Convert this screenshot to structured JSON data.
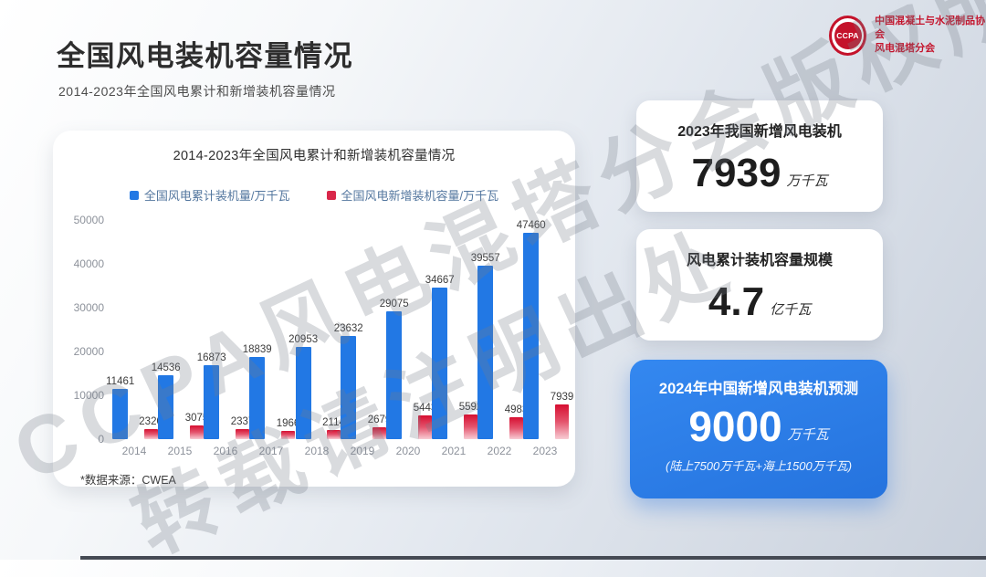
{
  "page": {
    "title": "全国风电装机容量情况",
    "subtitle": "2014-2023年全国风电累计和新增装机容量情况"
  },
  "logo": {
    "acronym": "CCPA",
    "org_line1": "中国混凝土与水泥制品协会",
    "org_line2": "风电混塔分会"
  },
  "chart_card": {
    "footnote": "*数据来源：CWEA"
  },
  "chart_data": {
    "type": "bar",
    "title": "2014-2023年全国风电累计和新增装机容量情况",
    "categories": [
      "2014",
      "2015",
      "2016",
      "2017",
      "2018",
      "2019",
      "2020",
      "2021",
      "2022",
      "2023"
    ],
    "series": [
      {
        "name": "全国风电累计装机量/万千瓦",
        "color": "#2278e4",
        "values": [
          11461,
          14536,
          16873,
          18839,
          20953,
          23632,
          29075,
          34667,
          39557,
          47460
        ]
      },
      {
        "name": "全国风电新增装机容量/万千瓦",
        "color": "#d9274a",
        "values": [
          2320,
          3075,
          2337,
          1966,
          2114,
          2679,
          5443,
          5592,
          4983,
          7939
        ]
      }
    ],
    "xlabel": "",
    "ylabel": "",
    "ylim": [
      0,
      50000
    ],
    "yticks": [
      0,
      10000,
      20000,
      30000,
      40000,
      50000
    ],
    "grid": false,
    "legend_position": "top",
    "data_labels": true
  },
  "stat_cards": [
    {
      "title": "2023年我国新增风电装机",
      "value": "7939",
      "unit": "万千瓦"
    },
    {
      "title": "风电累计装机容量规模",
      "value": "4.7",
      "unit": "亿千瓦"
    },
    {
      "title": "2024年中国新增风电装机预测",
      "value": "9000",
      "unit": "万千瓦",
      "note": "(陆上7500万千瓦+海上1500万千瓦)"
    }
  ],
  "watermark": {
    "line1": "CCPA风电混塔分会版权所有",
    "line2": "转载请注明出处"
  }
}
